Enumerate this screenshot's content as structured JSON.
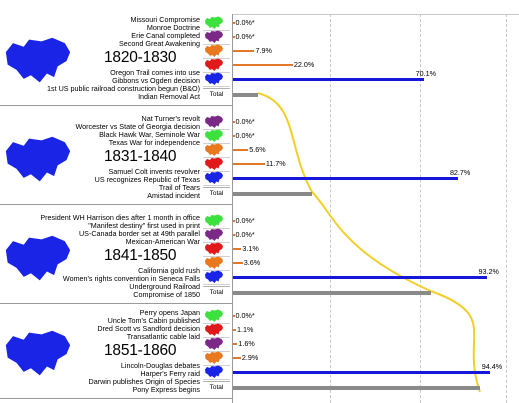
{
  "colors": {
    "blue": "#1717dc",
    "gray": "#8a8a8a",
    "curve": "#f2cf2a",
    "region_green": "#3ee03e",
    "region_purple": "#7a2a86",
    "region_orange": "#e9791e",
    "region_red": "#e01a1a",
    "region_blue": "#1a24e6",
    "small_bar": "#e07a2a"
  },
  "total_label": "Total",
  "blocks": [
    {
      "decade": "1820-1830",
      "events_top": [
        "Missouri Compromise",
        "Monroe Doctrine",
        "Erie Canal completed",
        "Second Great Awakening"
      ],
      "events_bottom": [
        "Oregon Trail comes into use",
        "Gibbons vs Ogden decision",
        "1st US public railroad construction begun (B&O)",
        "Indian Removal Act"
      ],
      "shares": [
        {
          "region": "green",
          "label": "0.0%*",
          "value": 0.0
        },
        {
          "region": "purple",
          "label": "0.0%*",
          "value": 0.0
        },
        {
          "region": "orange",
          "label": "7.9%",
          "value": 7.9
        },
        {
          "region": "red",
          "label": "22.0%",
          "value": 22.0
        },
        {
          "region": "blue",
          "label": "70.1%",
          "value": 70.1
        }
      ],
      "total_value": 10.0
    },
    {
      "decade": "1831-1840",
      "events_top": [
        "Nat Turner's revolt",
        "Worcester vs State of Georgia decision",
        "Black Hawk War, Seminole War",
        "Texas War for independence"
      ],
      "events_bottom": [
        "Samuel Colt invents revolver",
        "US recognizes Republic of Texas",
        "Trail of Tears",
        "Amistad incident"
      ],
      "shares": [
        {
          "region": "purple",
          "label": "0.0%*",
          "value": 0.0
        },
        {
          "region": "green",
          "label": "0.0%*",
          "value": 0.0
        },
        {
          "region": "orange",
          "label": "5.6%",
          "value": 5.6
        },
        {
          "region": "red",
          "label": "11.7%",
          "value": 11.7
        },
        {
          "region": "blue",
          "label": "82.7%",
          "value": 82.7
        }
      ],
      "total_value": 32.0
    },
    {
      "decade": "1841-1850",
      "events_top": [
        "President WH Harrison dies after 1 month in office",
        "\"Manifest destiny\" first used in print",
        "US-Canada border set at 49th parallel",
        "Mexican-American War"
      ],
      "events_bottom": [
        "California gold rush",
        "Women's rights convention in Seneca Falls",
        "Underground Railroad",
        "Compromise of 1850"
      ],
      "shares": [
        {
          "region": "green",
          "label": "0.0%*",
          "value": 0.0
        },
        {
          "region": "purple",
          "label": "0.0%*",
          "value": 0.0
        },
        {
          "region": "red",
          "label": "3.1%",
          "value": 3.1
        },
        {
          "region": "orange",
          "label": "3.6%",
          "value": 3.6
        },
        {
          "region": "blue",
          "label": "93.2%",
          "value": 93.2
        }
      ],
      "total_value": 80.0
    },
    {
      "decade": "1851-1860",
      "events_top": [
        "Perry opens Japan",
        "Uncle Tom's Cabin published",
        "Dred Scott vs Sandford decision",
        "Transatlantic cable laid"
      ],
      "events_bottom": [
        "Lincoln-Douglas debates",
        "Harper's Ferry raid",
        "Darwin publishes Origin of Species",
        "Pony Express begins"
      ],
      "shares": [
        {
          "region": "green",
          "label": "0.0%*",
          "value": 0.0
        },
        {
          "region": "red",
          "label": "1.1%",
          "value": 1.1
        },
        {
          "region": "purple",
          "label": "1.6%",
          "value": 1.6
        },
        {
          "region": "orange",
          "label": "2.9%",
          "value": 2.9
        },
        {
          "region": "blue",
          "label": "94.4%",
          "value": 94.4
        }
      ],
      "total_value": 100.0
    }
  ]
}
